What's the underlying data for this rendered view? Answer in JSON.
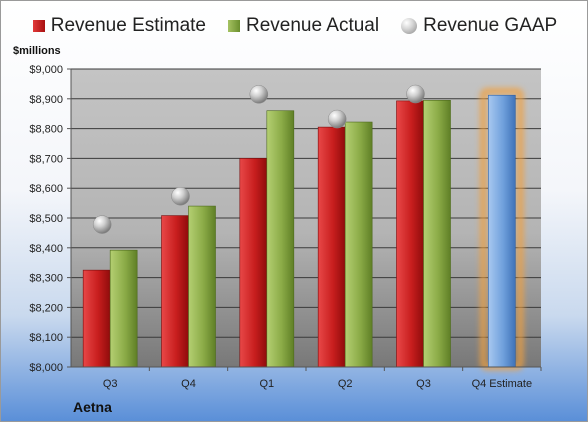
{
  "company": "Aetna",
  "units_label": "$millions",
  "legend": [
    {
      "key": "est",
      "label": "Revenue Estimate"
    },
    {
      "key": "act",
      "label": "Revenue Actual"
    },
    {
      "key": "gaap",
      "label": "Revenue GAAP"
    }
  ],
  "chart_data": {
    "type": "bar",
    "categories": [
      "Q3",
      "Q4",
      "Q1",
      "Q2",
      "Q3",
      "Q4 Estimate"
    ],
    "ylim": [
      8000,
      9000
    ],
    "ytick_step": 100,
    "ytick_labels": [
      "$8,000",
      "$8,100",
      "$8,200",
      "$8,300",
      "$8,400",
      "$8,500",
      "$8,600",
      "$8,700",
      "$8,800",
      "$8,900",
      "$9,000"
    ],
    "grid": true,
    "legend_position": "top",
    "series": [
      {
        "name": "Revenue Estimate",
        "kind": "bar",
        "color": "#c81e1e",
        "values": [
          8325,
          8508,
          8700,
          8805,
          8893,
          null
        ]
      },
      {
        "name": "Revenue Actual",
        "kind": "bar",
        "color": "#8bab47",
        "values": [
          8392,
          8540,
          8860,
          8822,
          8895,
          null
        ]
      },
      {
        "name": "Revenue GAAP",
        "kind": "point",
        "color": "#b8b8b8",
        "values": [
          8478,
          8573,
          8915,
          8832,
          8916,
          null
        ]
      },
      {
        "name": "Q4 Estimate",
        "kind": "bar",
        "color": "#6fa0dc",
        "values": [
          null,
          null,
          null,
          null,
          null,
          8912
        ]
      }
    ]
  }
}
